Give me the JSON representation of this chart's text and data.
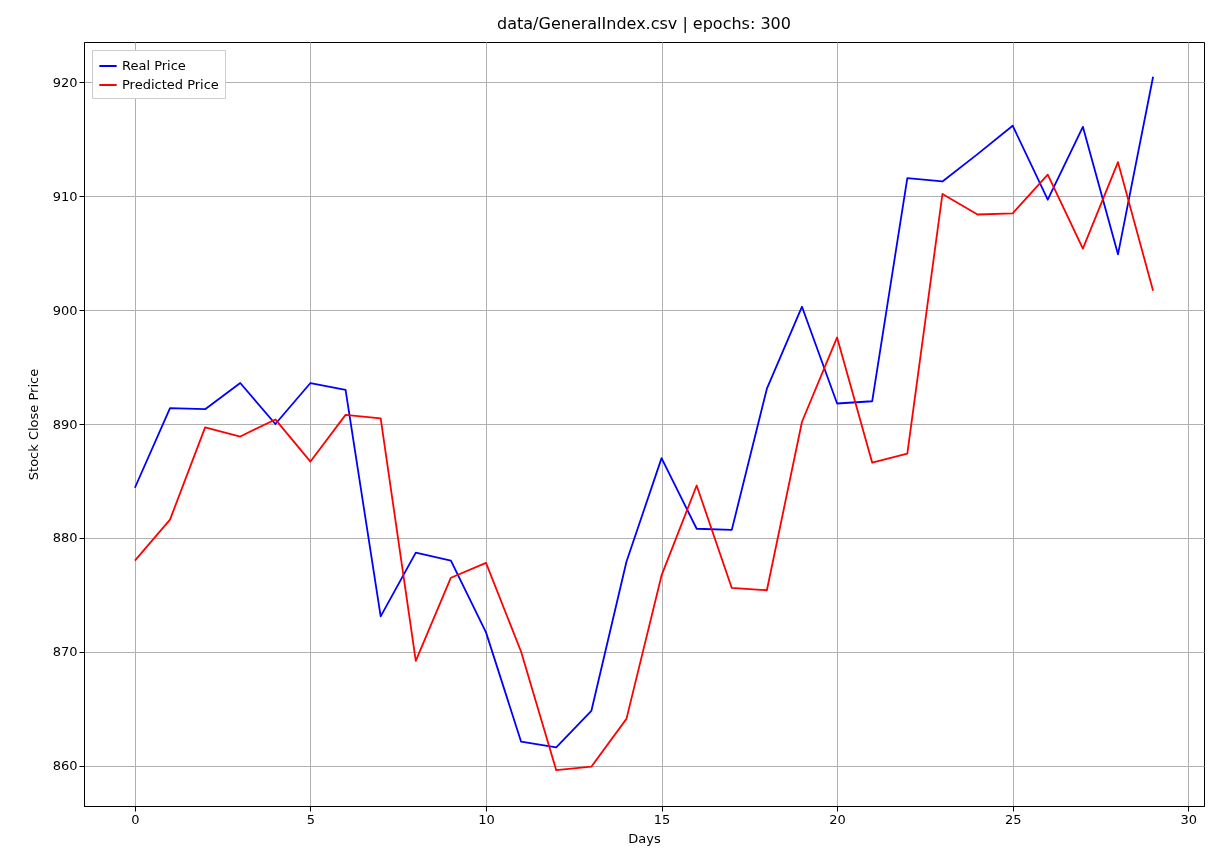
{
  "chart_data": {
    "type": "line",
    "title": "data/GeneralIndex.csv | epochs: 300",
    "xlabel": "Days",
    "ylabel": "Stock Close Price",
    "x": [
      0,
      1,
      2,
      3,
      4,
      5,
      6,
      7,
      8,
      9,
      10,
      11,
      12,
      13,
      14,
      15,
      16,
      17,
      18,
      19,
      20,
      21,
      22,
      23,
      24,
      25,
      26,
      27,
      28,
      29
    ],
    "series": [
      {
        "name": "Real Price",
        "color": "#0000ff",
        "values": [
          884.4,
          891.4,
          891.3,
          893.6,
          890.0,
          893.6,
          893.0,
          873.1,
          878.7,
          878.0,
          871.7,
          862.1,
          861.6,
          864.8,
          877.9,
          887.0,
          880.8,
          880.7,
          893.1,
          900.3,
          891.8,
          892.0,
          911.6,
          911.3,
          913.7,
          916.2,
          909.7,
          916.1,
          904.9,
          920.5
        ]
      },
      {
        "name": "Predicted Price",
        "color": "#ff0000",
        "values": [
          878.0,
          881.6,
          889.7,
          888.9,
          890.4,
          886.7,
          890.8,
          890.5,
          869.2,
          876.5,
          877.8,
          870.0,
          859.6,
          859.9,
          864.1,
          876.7,
          884.6,
          875.6,
          875.4,
          890.2,
          897.6,
          886.6,
          887.4,
          910.2,
          908.4,
          908.5,
          911.9,
          905.4,
          913.0,
          901.7
        ]
      }
    ],
    "xlim": [
      -1.45,
      30.45
    ],
    "xticks": [
      0,
      5,
      10,
      15,
      20,
      25,
      30
    ],
    "ylim": [
      856.45,
      923.55
    ],
    "yticks": [
      860,
      870,
      880,
      890,
      900,
      910,
      920
    ],
    "grid": true,
    "legend": "top left",
    "marker": "none",
    "line_style": "solid"
  }
}
